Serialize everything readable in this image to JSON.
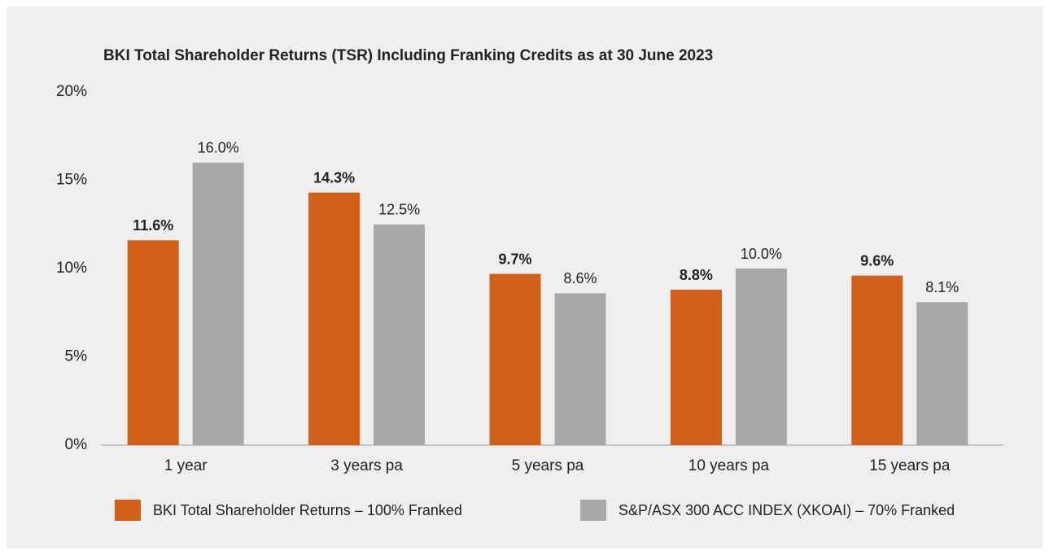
{
  "chart_data": {
    "type": "bar",
    "title": "BKI Total Shareholder Returns (TSR) Including Franking Credits as at 30 June 2023",
    "categories": [
      "1 year",
      "3 years pa",
      "5 years pa",
      "10 years pa",
      "15 years pa"
    ],
    "series": [
      {
        "name": "BKI Total Shareholder Returns – 100% Franked",
        "color": "#d2601a",
        "values": [
          11.6,
          14.3,
          9.7,
          8.8,
          9.6
        ],
        "value_labels": [
          "11.6%",
          "14.3%",
          "9.7%",
          "8.8%",
          "9.6%"
        ]
      },
      {
        "name": "S&P/ASX 300 ACC INDEX (XKOAI) – 70% Franked",
        "color": "#a7a8aa",
        "values": [
          16.0,
          12.5,
          8.6,
          10.0,
          8.1
        ],
        "value_labels": [
          "16.0%",
          "12.5%",
          "8.6%",
          "10.0%",
          "8.1%"
        ]
      }
    ],
    "ylim": [
      0,
      20
    ],
    "yticks": [
      {
        "value": 0,
        "label": "0%"
      },
      {
        "value": 5,
        "label": "5%"
      },
      {
        "value": 10,
        "label": "10%"
      },
      {
        "value": 15,
        "label": "15%"
      },
      {
        "value": 20,
        "label": "20%"
      }
    ],
    "grid": false,
    "legend": "bottom"
  }
}
